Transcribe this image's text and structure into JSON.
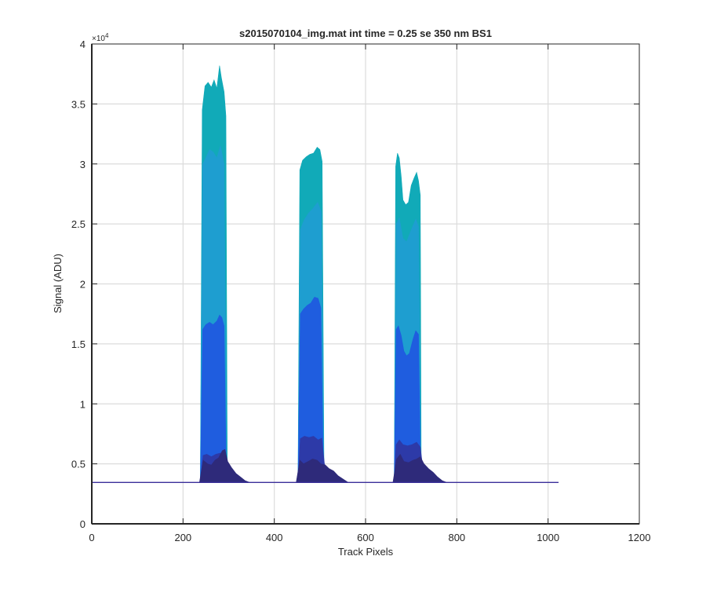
{
  "chart_data": {
    "type": "area",
    "title": "s2015070104_img.mat int time = 0.25 se  350 nm BS1",
    "xlabel": "Track Pixels",
    "ylabel": "Signal (ADU)",
    "xlim": [
      0,
      1200
    ],
    "ylim": [
      0,
      40000
    ],
    "y_exponent_label": "×10",
    "y_exponent_power": "4",
    "grid": true,
    "xticks": [
      0,
      200,
      400,
      600,
      800,
      1000,
      1200
    ],
    "xtick_labels": [
      "0",
      "200",
      "400",
      "600",
      "800",
      "1000",
      "1200"
    ],
    "yticks": [
      0,
      5000,
      10000,
      15000,
      20000,
      25000,
      30000,
      35000,
      40000
    ],
    "ytick_labels": [
      "0",
      "0.5",
      "1",
      "1.5",
      "2",
      "2.5",
      "3",
      "3.5",
      "4"
    ],
    "baseline": 3450,
    "baseline_xrange": [
      0,
      1023
    ],
    "colors": {
      "top": "#11aab8",
      "upper": "#1e9ed0",
      "middle": "#1f5ddf",
      "lower": "#2d3aa8",
      "base": "#2e2a7a",
      "baseline_line": "#3a2f9a"
    },
    "series": [
      {
        "layer": "top",
        "points": [
          [
            238,
            3450
          ],
          [
            242,
            34500
          ],
          [
            248,
            36500
          ],
          [
            255,
            36800
          ],
          [
            262,
            36400
          ],
          [
            268,
            37000
          ],
          [
            274,
            36300
          ],
          [
            280,
            38200
          ],
          [
            284,
            37200
          ],
          [
            290,
            36000
          ],
          [
            294,
            34000
          ],
          [
            297,
            3450
          ],
          [
            452,
            3450
          ],
          [
            456,
            29500
          ],
          [
            462,
            30300
          ],
          [
            470,
            30600
          ],
          [
            478,
            30800
          ],
          [
            486,
            30900
          ],
          [
            494,
            31400
          ],
          [
            500,
            31200
          ],
          [
            505,
            30200
          ],
          [
            509,
            3450
          ],
          [
            663,
            3450
          ],
          [
            666,
            29800
          ],
          [
            670,
            30900
          ],
          [
            674,
            30500
          ],
          [
            678,
            29000
          ],
          [
            682,
            27000
          ],
          [
            688,
            26600
          ],
          [
            694,
            26800
          ],
          [
            700,
            28200
          ],
          [
            706,
            28800
          ],
          [
            712,
            29300
          ],
          [
            716,
            28600
          ],
          [
            720,
            27400
          ],
          [
            722,
            3450
          ]
        ]
      },
      {
        "layer": "upper",
        "points": [
          [
            238,
            3450
          ],
          [
            243,
            30000
          ],
          [
            250,
            30500
          ],
          [
            258,
            31200
          ],
          [
            266,
            31000
          ],
          [
            274,
            30500
          ],
          [
            282,
            31500
          ],
          [
            290,
            30000
          ],
          [
            296,
            3450
          ],
          [
            452,
            3450
          ],
          [
            457,
            24500
          ],
          [
            465,
            25300
          ],
          [
            475,
            25900
          ],
          [
            485,
            26300
          ],
          [
            495,
            26800
          ],
          [
            503,
            26000
          ],
          [
            509,
            3450
          ],
          [
            663,
            3450
          ],
          [
            667,
            25000
          ],
          [
            674,
            25500
          ],
          [
            682,
            23800
          ],
          [
            690,
            23500
          ],
          [
            700,
            24500
          ],
          [
            710,
            25400
          ],
          [
            716,
            24800
          ],
          [
            722,
            3450
          ]
        ]
      },
      {
        "layer": "middle",
        "points": [
          [
            238,
            3450
          ],
          [
            243,
            16200
          ],
          [
            250,
            16600
          ],
          [
            258,
            16800
          ],
          [
            266,
            16600
          ],
          [
            274,
            16900
          ],
          [
            280,
            17400
          ],
          [
            285,
            17200
          ],
          [
            290,
            16500
          ],
          [
            295,
            3450
          ],
          [
            452,
            3450
          ],
          [
            457,
            17500
          ],
          [
            464,
            17900
          ],
          [
            472,
            18200
          ],
          [
            480,
            18400
          ],
          [
            488,
            18900
          ],
          [
            496,
            18800
          ],
          [
            502,
            18000
          ],
          [
            508,
            3450
          ],
          [
            663,
            3450
          ],
          [
            667,
            16200
          ],
          [
            672,
            16500
          ],
          [
            678,
            15700
          ],
          [
            684,
            14400
          ],
          [
            690,
            14000
          ],
          [
            696,
            14200
          ],
          [
            704,
            15400
          ],
          [
            710,
            16100
          ],
          [
            716,
            15800
          ],
          [
            721,
            3450
          ]
        ]
      },
      {
        "layer": "lower",
        "points": [
          [
            238,
            3450
          ],
          [
            244,
            5700
          ],
          [
            252,
            5800
          ],
          [
            262,
            5600
          ],
          [
            272,
            5800
          ],
          [
            282,
            5900
          ],
          [
            290,
            5850
          ],
          [
            296,
            4800
          ],
          [
            305,
            3900
          ],
          [
            316,
            3450
          ],
          [
            452,
            3450
          ],
          [
            457,
            7100
          ],
          [
            466,
            7300
          ],
          [
            476,
            7200
          ],
          [
            486,
            7300
          ],
          [
            496,
            7000
          ],
          [
            504,
            7150
          ],
          [
            510,
            5000
          ],
          [
            518,
            4300
          ],
          [
            528,
            3450
          ],
          [
            663,
            3450
          ],
          [
            667,
            6600
          ],
          [
            674,
            7000
          ],
          [
            682,
            6600
          ],
          [
            692,
            6500
          ],
          [
            702,
            6600
          ],
          [
            712,
            6800
          ],
          [
            720,
            6400
          ],
          [
            726,
            4500
          ],
          [
            736,
            3800
          ],
          [
            744,
            3450
          ]
        ]
      },
      {
        "layer": "base",
        "points": [
          [
            236,
            3450
          ],
          [
            244,
            5300
          ],
          [
            254,
            5000
          ],
          [
            262,
            4900
          ],
          [
            270,
            5300
          ],
          [
            278,
            5500
          ],
          [
            286,
            6100
          ],
          [
            292,
            6200
          ],
          [
            298,
            5200
          ],
          [
            306,
            4700
          ],
          [
            316,
            4200
          ],
          [
            326,
            3900
          ],
          [
            336,
            3600
          ],
          [
            346,
            3450
          ],
          [
            448,
            3450
          ],
          [
            456,
            5300
          ],
          [
            464,
            5000
          ],
          [
            474,
            5200
          ],
          [
            484,
            5400
          ],
          [
            494,
            5300
          ],
          [
            502,
            5000
          ],
          [
            512,
            4900
          ],
          [
            520,
            4600
          ],
          [
            530,
            4400
          ],
          [
            540,
            4000
          ],
          [
            552,
            3700
          ],
          [
            562,
            3450
          ],
          [
            660,
            3450
          ],
          [
            668,
            5400
          ],
          [
            676,
            5800
          ],
          [
            684,
            5200
          ],
          [
            694,
            5100
          ],
          [
            704,
            5300
          ],
          [
            712,
            5400
          ],
          [
            720,
            5600
          ],
          [
            728,
            5000
          ],
          [
            738,
            4600
          ],
          [
            748,
            4300
          ],
          [
            758,
            3900
          ],
          [
            768,
            3600
          ],
          [
            778,
            3450
          ]
        ]
      }
    ]
  }
}
